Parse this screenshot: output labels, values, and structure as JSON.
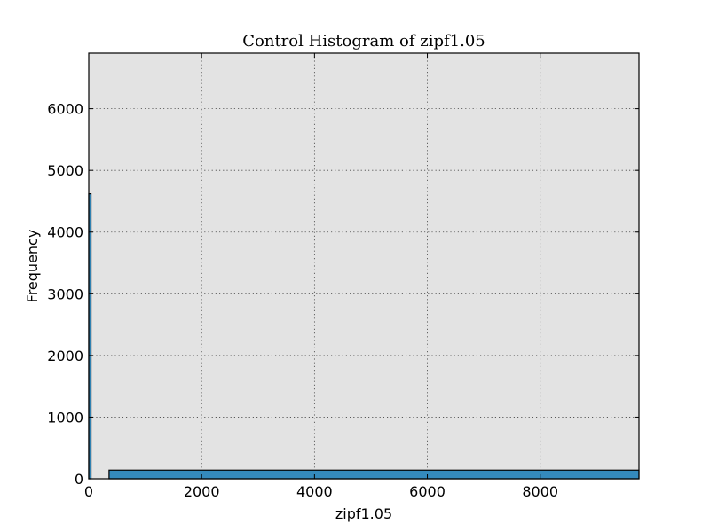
{
  "chart_data": {
    "type": "bar",
    "title": "Control Histogram of zipf1.05",
    "xlabel": "zipf1.05",
    "ylabel": "Frequency",
    "xlim": [
      0,
      9750
    ],
    "ylim": [
      0,
      6900
    ],
    "xticks": [
      0,
      2000,
      4000,
      6000,
      8000
    ],
    "yticks": [
      0,
      1000,
      2000,
      3000,
      4000,
      5000,
      6000
    ],
    "grid": true,
    "bins": [
      {
        "x0": 0,
        "x1": 40,
        "value": 4620
      },
      {
        "x0": 360,
        "x1": 9750,
        "value": 140
      }
    ],
    "colors": {
      "plot_bg": "#e3e3e3",
      "bar_fill": "#348abd",
      "bar_edge": "#000000"
    }
  }
}
